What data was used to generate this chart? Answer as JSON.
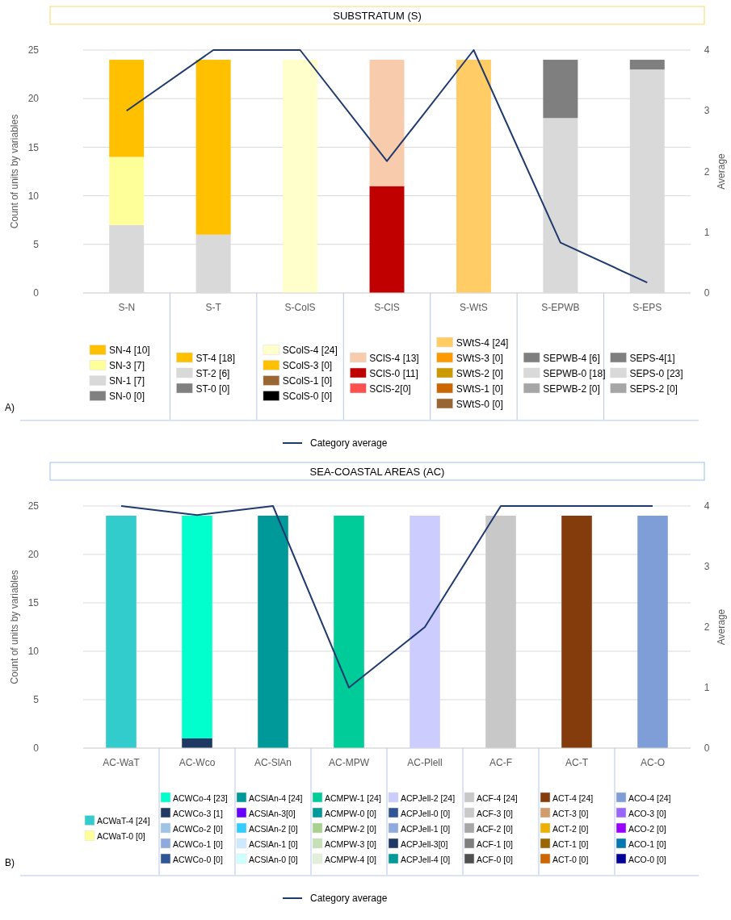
{
  "chart_data": [
    {
      "type": "bar",
      "stacked": true,
      "title": "SUBSTRATUM (S)",
      "ylabel": "Count of units by variables",
      "y2label": "Average",
      "categories": [
        "S-N",
        "S-T",
        "S-ColS",
        "S-ClS",
        "S-WtS",
        "S-EPWB",
        "S-EPS"
      ],
      "ylim": [
        0,
        25
      ],
      "yticks": [
        0,
        5,
        10,
        15,
        20,
        25
      ],
      "y2lim": [
        0,
        4
      ],
      "y2ticks": [
        0,
        1,
        2,
        3,
        4
      ],
      "grid": "y",
      "legend": "bottom",
      "annotations": [
        "A)"
      ],
      "series": [
        {
          "name": "SN-0 [0]",
          "color": "#808080",
          "values": [
            0,
            null,
            null,
            null,
            null,
            null,
            null
          ]
        },
        {
          "name": "SN-1 [7]",
          "color": "#d9d9d9",
          "values": [
            7,
            null,
            null,
            null,
            null,
            null,
            null
          ]
        },
        {
          "name": "SN-3 [7]",
          "color": "#ffff99",
          "values": [
            7,
            null,
            null,
            null,
            null,
            null,
            null
          ]
        },
        {
          "name": "SN-4 [10]",
          "color": "#ffc000",
          "values": [
            10,
            null,
            null,
            null,
            null,
            null,
            null
          ]
        },
        {
          "name": "ST-0 [0]",
          "color": "#808080",
          "values": [
            null,
            0,
            null,
            null,
            null,
            null,
            null
          ]
        },
        {
          "name": "ST-2 [6]",
          "color": "#d9d9d9",
          "values": [
            null,
            6,
            null,
            null,
            null,
            null,
            null
          ]
        },
        {
          "name": "ST-4 [18]",
          "color": "#ffc000",
          "values": [
            null,
            18,
            null,
            null,
            null,
            null,
            null
          ]
        },
        {
          "name": "SColS-0 [0]",
          "color": "#000000",
          "values": [
            null,
            null,
            0,
            null,
            null,
            null,
            null
          ]
        },
        {
          "name": "SColS-1 [0]",
          "color": "#996633",
          "values": [
            null,
            null,
            0,
            null,
            null,
            null,
            null
          ]
        },
        {
          "name": "SColS-3 [0]",
          "color": "#ffc000",
          "values": [
            null,
            null,
            0,
            null,
            null,
            null,
            null
          ]
        },
        {
          "name": "SColS-4  [24]",
          "color": "#ffffcc",
          "values": [
            null,
            null,
            24,
            null,
            null,
            null,
            null
          ]
        },
        {
          "name": "SClS-2[0]",
          "color": "#ff5050",
          "values": [
            null,
            null,
            null,
            0,
            null,
            null,
            null
          ]
        },
        {
          "name": "SClS-0 [11]",
          "color": "#c00000",
          "values": [
            null,
            null,
            null,
            11,
            null,
            null,
            null
          ]
        },
        {
          "name": "SClS-4  [13]",
          "color": "#f8cbad",
          "values": [
            null,
            null,
            null,
            13,
            null,
            null,
            null
          ]
        },
        {
          "name": "SWtS-0 [0]",
          "color": "#996633",
          "values": [
            null,
            null,
            null,
            null,
            0,
            null,
            null
          ]
        },
        {
          "name": "SWtS-1 [0]",
          "color": "#cc6600",
          "values": [
            null,
            null,
            null,
            null,
            0,
            null,
            null
          ]
        },
        {
          "name": "SWtS-2 [0]",
          "color": "#cc9900",
          "values": [
            null,
            null,
            null,
            null,
            0,
            null,
            null
          ]
        },
        {
          "name": "SWtS-3 [0]",
          "color": "#ff9900",
          "values": [
            null,
            null,
            null,
            null,
            0,
            null,
            null
          ]
        },
        {
          "name": "SWtS-4  [24]",
          "color": "#ffcc66",
          "values": [
            null,
            null,
            null,
            null,
            24,
            null,
            null
          ]
        },
        {
          "name": "SEPWB-2 [0]",
          "color": "#a6a6a6",
          "values": [
            null,
            null,
            null,
            null,
            null,
            0,
            null
          ]
        },
        {
          "name": "SEPWB-0 [18]",
          "color": "#d9d9d9",
          "values": [
            null,
            null,
            null,
            null,
            null,
            18,
            null
          ]
        },
        {
          "name": "SEPWB-4 [6]",
          "color": "#7f7f7f",
          "values": [
            null,
            null,
            null,
            null,
            null,
            6,
            null
          ]
        },
        {
          "name": "SEPS-2 [0]",
          "color": "#a6a6a6",
          "values": [
            null,
            null,
            null,
            null,
            null,
            null,
            0
          ]
        },
        {
          "name": "SEPS-0  [23]",
          "color": "#d9d9d9",
          "values": [
            null,
            null,
            null,
            null,
            null,
            null,
            23
          ]
        },
        {
          "name": "SEPS-4[1]",
          "color": "#7f7f7f",
          "values": [
            null,
            null,
            null,
            null,
            null,
            null,
            1
          ]
        },
        {
          "name": "Category average",
          "type": "line",
          "axis": "y2",
          "color": "#1f3a6e",
          "values": [
            3,
            4,
            4,
            2.17,
            4,
            0.83,
            0.17
          ]
        }
      ]
    },
    {
      "type": "bar",
      "stacked": true,
      "title": "SEA-COASTAL AREAS (AC)",
      "ylabel": "Count of units by variables",
      "y2label": "Average",
      "categories": [
        "AC-WaT",
        "AC-Wco",
        "AC-SlAn",
        "AC-MPW",
        "AC-Plell",
        "AC-F",
        "AC-T",
        "AC-O"
      ],
      "ylim": [
        0,
        25
      ],
      "yticks": [
        0,
        5,
        10,
        15,
        20,
        25
      ],
      "y2lim": [
        0,
        4
      ],
      "y2ticks": [
        0,
        1,
        2,
        3,
        4
      ],
      "grid": "y",
      "legend": "bottom",
      "annotations": [
        "B)"
      ],
      "series": [
        {
          "name": "ACWaT-0  [0]",
          "color": "#ffff99",
          "values": [
            0,
            null,
            null,
            null,
            null,
            null,
            null,
            null
          ]
        },
        {
          "name": "ACWaT-4 [24]",
          "color": "#33cccc",
          "values": [
            24,
            null,
            null,
            null,
            null,
            null,
            null,
            null
          ]
        },
        {
          "name": "ACWCo-0 [0]",
          "color": "#2f5597",
          "values": [
            null,
            0,
            null,
            null,
            null,
            null,
            null,
            null
          ]
        },
        {
          "name": "ACWCo-1 [0]",
          "color": "#8faadc",
          "values": [
            null,
            0,
            null,
            null,
            null,
            null,
            null,
            null
          ]
        },
        {
          "name": "ACWCo-2 [0]",
          "color": "#9dc3e6",
          "values": [
            null,
            0,
            null,
            null,
            null,
            null,
            null,
            null
          ]
        },
        {
          "name": "ACWCo-3 [1]",
          "color": "#203864",
          "values": [
            null,
            1,
            null,
            null,
            null,
            null,
            null,
            null
          ]
        },
        {
          "name": "ACWCo-4 [23]",
          "color": "#00ffcc",
          "values": [
            null,
            23,
            null,
            null,
            null,
            null,
            null,
            null
          ]
        },
        {
          "name": "ACSlAn-0 [0]",
          "color": "#ccffff",
          "values": [
            null,
            null,
            0,
            null,
            null,
            null,
            null,
            null
          ]
        },
        {
          "name": "ACSlAn-1 [0]",
          "color": "#cce9ff",
          "values": [
            null,
            null,
            0,
            null,
            null,
            null,
            null,
            null
          ]
        },
        {
          "name": "ACSlAn-2 [0]",
          "color": "#33ccff",
          "values": [
            null,
            null,
            0,
            null,
            null,
            null,
            null,
            null
          ]
        },
        {
          "name": "ACSlAn-3[0]",
          "color": "#6600ff",
          "values": [
            null,
            null,
            0,
            null,
            null,
            null,
            null,
            null
          ]
        },
        {
          "name": "ACSlAn-4 [24]",
          "color": "#009999",
          "values": [
            null,
            null,
            24,
            null,
            null,
            null,
            null,
            null
          ]
        },
        {
          "name": "ACMPW-4  [0]",
          "color": "#e2f0d9",
          "values": [
            null,
            null,
            null,
            0,
            null,
            null,
            null,
            null
          ]
        },
        {
          "name": "ACMPW-3 [0]",
          "color": "#c5e0b4",
          "values": [
            null,
            null,
            null,
            0,
            null,
            null,
            null,
            null
          ]
        },
        {
          "name": "ACMPW-2 [0]",
          "color": "#a9d18e",
          "values": [
            null,
            null,
            null,
            0,
            null,
            null,
            null,
            null
          ]
        },
        {
          "name": "ACMPW-0 [0]",
          "color": "#009999",
          "values": [
            null,
            null,
            null,
            0,
            null,
            null,
            null,
            null
          ]
        },
        {
          "name": "ACMPW-1 [24]",
          "color": "#00cc99",
          "values": [
            null,
            null,
            null,
            24,
            null,
            null,
            null,
            null
          ]
        },
        {
          "name": "ACPJell-4 [0]",
          "color": "#009999",
          "values": [
            null,
            null,
            null,
            null,
            0,
            null,
            null,
            null
          ]
        },
        {
          "name": "ACPJell-3[0]",
          "color": "#203864",
          "values": [
            null,
            null,
            null,
            null,
            0,
            null,
            null,
            null
          ]
        },
        {
          "name": "ACPJell-1  [0]",
          "color": "#8faadc",
          "values": [
            null,
            null,
            null,
            null,
            0,
            null,
            null,
            null
          ]
        },
        {
          "name": "ACPJell-0 [0]",
          "color": "#2f5597",
          "values": [
            null,
            null,
            null,
            null,
            0,
            null,
            null,
            null
          ]
        },
        {
          "name": "ACPJell-2 [24]",
          "color": "#ccccff",
          "values": [
            null,
            null,
            null,
            null,
            24,
            null,
            null,
            null
          ]
        },
        {
          "name": "ACF-0 [0]",
          "color": "#505050",
          "values": [
            null,
            null,
            null,
            null,
            null,
            0,
            null,
            null
          ]
        },
        {
          "name": "ACF-1  [0]",
          "color": "#7f7f7f",
          "values": [
            null,
            null,
            null,
            null,
            null,
            0,
            null,
            null
          ]
        },
        {
          "name": "ACF-2 [0]",
          "color": "#a6a6a6",
          "values": [
            null,
            null,
            null,
            null,
            null,
            0,
            null,
            null
          ]
        },
        {
          "name": "ACF-3 [0]",
          "color": "#c9c9c9",
          "values": [
            null,
            null,
            null,
            null,
            null,
            0,
            null,
            null
          ]
        },
        {
          "name": "ACF-4 [24]",
          "color": "#c8c8c8",
          "values": [
            null,
            null,
            null,
            null,
            null,
            24,
            null,
            null
          ]
        },
        {
          "name": "ACT-0 [0]",
          "color": "#cc6600",
          "values": [
            null,
            null,
            null,
            null,
            null,
            null,
            0,
            null
          ]
        },
        {
          "name": "ACT-1  [0]",
          "color": "#996600",
          "values": [
            null,
            null,
            null,
            null,
            null,
            null,
            0,
            null
          ]
        },
        {
          "name": "ACT-2 [0]",
          "color": "#eeb000",
          "values": [
            null,
            null,
            null,
            null,
            null,
            null,
            0,
            null
          ]
        },
        {
          "name": "ACT-3 [0]",
          "color": "#d09c6c",
          "values": [
            null,
            null,
            null,
            null,
            null,
            null,
            0,
            null
          ]
        },
        {
          "name": "ACT-4 [24]",
          "color": "#843c0c",
          "values": [
            null,
            null,
            null,
            null,
            null,
            null,
            24,
            null
          ]
        },
        {
          "name": "ACO-0 [0]",
          "color": "#000099",
          "values": [
            null,
            null,
            null,
            null,
            null,
            null,
            null,
            0
          ]
        },
        {
          "name": "ACO-1 [0]",
          "color": "#0077b3",
          "values": [
            null,
            null,
            null,
            null,
            null,
            null,
            null,
            0
          ]
        },
        {
          "name": "ACO-2 [0]",
          "color": "#9900ff",
          "values": [
            null,
            null,
            null,
            null,
            null,
            null,
            null,
            0
          ]
        },
        {
          "name": "ACO-3 [0]",
          "color": "#9966ff",
          "values": [
            null,
            null,
            null,
            null,
            null,
            null,
            null,
            0
          ]
        },
        {
          "name": "ACO-4 [24]",
          "color": "#7f9dd6",
          "values": [
            null,
            null,
            null,
            null,
            null,
            null,
            null,
            24
          ]
        },
        {
          "name": "Category average",
          "type": "line",
          "axis": "y2",
          "color": "#1f3a6e",
          "values": [
            4,
            3.85,
            4,
            1,
            2,
            4,
            4,
            4
          ]
        }
      ]
    }
  ]
}
